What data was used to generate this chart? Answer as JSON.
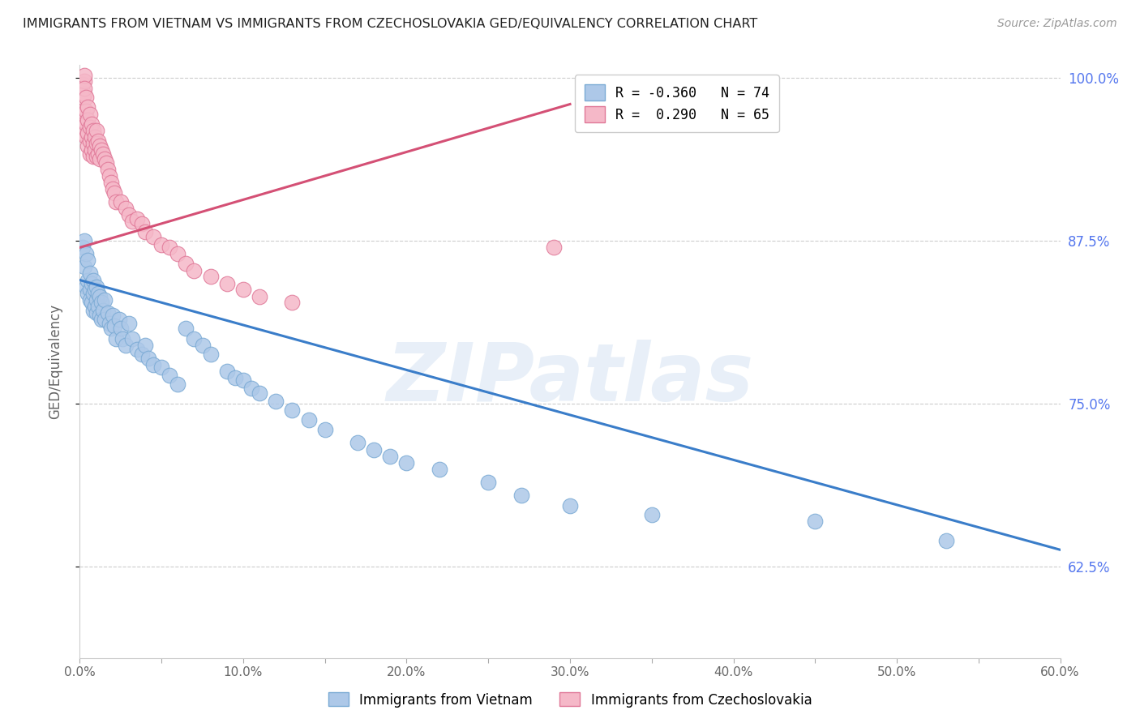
{
  "title": "IMMIGRANTS FROM VIETNAM VS IMMIGRANTS FROM CZECHOSLOVAKIA GED/EQUIVALENCY CORRELATION CHART",
  "source": "Source: ZipAtlas.com",
  "ylabel": "GED/Equivalency",
  "xlim": [
    0.0,
    0.6
  ],
  "ylim": [
    0.555,
    1.01
  ],
  "xtick_labels": [
    "0.0%",
    "",
    "10.0%",
    "",
    "20.0%",
    "",
    "30.0%",
    "",
    "40.0%",
    "",
    "50.0%",
    "",
    "60.0%"
  ],
  "xtick_vals": [
    0.0,
    0.05,
    0.1,
    0.15,
    0.2,
    0.25,
    0.3,
    0.35,
    0.4,
    0.45,
    0.5,
    0.55,
    0.6
  ],
  "ytick_labels_right": [
    "62.5%",
    "75.0%",
    "87.5%",
    "100.0%"
  ],
  "ytick_vals": [
    0.625,
    0.75,
    0.875,
    1.0
  ],
  "vietnam_color": "#adc8e8",
  "vietnam_edge_color": "#7aaad4",
  "czech_color": "#f5b8c8",
  "czech_edge_color": "#e07898",
  "vietnam_line_color": "#3a7dc9",
  "czech_line_color": "#d45075",
  "legend_vietnam_label": "Immigrants from Vietnam",
  "legend_czech_label": "Immigrants from Czechoslovakia",
  "R_vietnam": -0.36,
  "N_vietnam": 74,
  "R_czech": 0.29,
  "N_czech": 65,
  "watermark": "ZIPatlas",
  "background_color": "#ffffff",
  "grid_color": "#cccccc",
  "title_color": "#222222",
  "right_axis_color": "#5577ee",
  "vietnam_x": [
    0.002,
    0.003,
    0.003,
    0.004,
    0.004,
    0.005,
    0.005,
    0.005,
    0.006,
    0.006,
    0.006,
    0.007,
    0.007,
    0.008,
    0.008,
    0.008,
    0.009,
    0.009,
    0.01,
    0.01,
    0.01,
    0.011,
    0.011,
    0.012,
    0.012,
    0.013,
    0.013,
    0.014,
    0.015,
    0.015,
    0.017,
    0.018,
    0.019,
    0.02,
    0.021,
    0.022,
    0.024,
    0.025,
    0.026,
    0.028,
    0.03,
    0.032,
    0.035,
    0.038,
    0.04,
    0.042,
    0.045,
    0.05,
    0.055,
    0.06,
    0.065,
    0.07,
    0.075,
    0.08,
    0.09,
    0.095,
    0.1,
    0.105,
    0.11,
    0.12,
    0.13,
    0.14,
    0.15,
    0.17,
    0.18,
    0.19,
    0.2,
    0.22,
    0.25,
    0.27,
    0.3,
    0.35,
    0.45,
    0.53
  ],
  "vietnam_y": [
    0.87,
    0.875,
    0.855,
    0.865,
    0.84,
    0.86,
    0.845,
    0.835,
    0.85,
    0.838,
    0.83,
    0.842,
    0.828,
    0.845,
    0.835,
    0.822,
    0.838,
    0.825,
    0.84,
    0.83,
    0.82,
    0.835,
    0.825,
    0.832,
    0.818,
    0.828,
    0.815,
    0.822,
    0.83,
    0.815,
    0.82,
    0.812,
    0.808,
    0.818,
    0.81,
    0.8,
    0.815,
    0.808,
    0.8,
    0.795,
    0.812,
    0.8,
    0.792,
    0.788,
    0.795,
    0.785,
    0.78,
    0.778,
    0.772,
    0.765,
    0.808,
    0.8,
    0.795,
    0.788,
    0.775,
    0.77,
    0.768,
    0.762,
    0.758,
    0.752,
    0.745,
    0.738,
    0.73,
    0.72,
    0.715,
    0.71,
    0.705,
    0.7,
    0.69,
    0.68,
    0.672,
    0.665,
    0.66,
    0.645
  ],
  "czech_x": [
    0.001,
    0.001,
    0.002,
    0.002,
    0.002,
    0.003,
    0.003,
    0.003,
    0.003,
    0.004,
    0.004,
    0.004,
    0.004,
    0.005,
    0.005,
    0.005,
    0.005,
    0.006,
    0.006,
    0.006,
    0.006,
    0.007,
    0.007,
    0.007,
    0.008,
    0.008,
    0.008,
    0.009,
    0.009,
    0.01,
    0.01,
    0.01,
    0.011,
    0.011,
    0.012,
    0.012,
    0.013,
    0.014,
    0.015,
    0.016,
    0.017,
    0.018,
    0.019,
    0.02,
    0.021,
    0.022,
    0.025,
    0.028,
    0.03,
    0.032,
    0.035,
    0.038,
    0.04,
    0.045,
    0.05,
    0.055,
    0.06,
    0.065,
    0.07,
    0.08,
    0.09,
    0.1,
    0.11,
    0.13,
    0.29
  ],
  "czech_y": [
    0.958,
    0.968,
    0.975,
    0.985,
    0.995,
    0.988,
    0.998,
    1.002,
    0.992,
    0.985,
    0.975,
    0.965,
    0.955,
    0.978,
    0.968,
    0.958,
    0.948,
    0.972,
    0.962,
    0.952,
    0.942,
    0.965,
    0.955,
    0.945,
    0.96,
    0.95,
    0.94,
    0.955,
    0.945,
    0.96,
    0.95,
    0.94,
    0.952,
    0.942,
    0.948,
    0.938,
    0.945,
    0.942,
    0.938,
    0.935,
    0.93,
    0.925,
    0.92,
    0.915,
    0.912,
    0.905,
    0.905,
    0.9,
    0.895,
    0.89,
    0.892,
    0.888,
    0.882,
    0.878,
    0.872,
    0.87,
    0.865,
    0.858,
    0.852,
    0.848,
    0.842,
    0.838,
    0.832,
    0.828,
    0.87
  ],
  "vietnam_line_x": [
    0.0,
    0.6
  ],
  "vietnam_line_y": [
    0.845,
    0.638
  ],
  "czech_line_x": [
    0.0,
    0.3
  ],
  "czech_line_y": [
    0.87,
    0.98
  ]
}
